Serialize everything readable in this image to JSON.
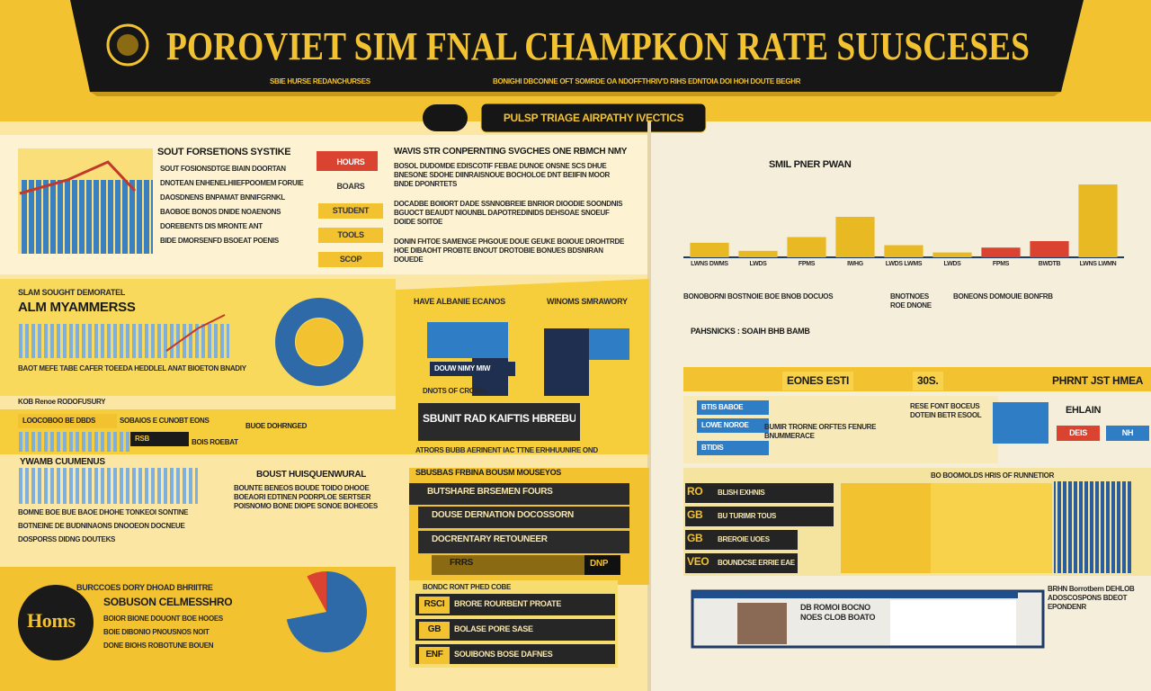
{
  "header": {
    "title": "POROVIET SIM FNAL CHAMPKON RATE SUUSCESES",
    "tag_left": "SBIE HURSE REDANCHURSES",
    "tag_right": "BONIGHI DBCONNE OFT SOMRDE OA NDOFFTHRIV'D RIHS EDNTOIA DOI HOH DOUTE BEGHR",
    "pill": "PULSP TRIAGE AIRPATHY IVECTICS"
  },
  "intro": {
    "title": "SOUT FORSETIONS SYSTIKE",
    "lines": [
      "SOUT FOSIONSDTGE BIAIN DOORTAN",
      "DNOTEAN ENHENELHIIEFPOOMEM FORUIE",
      "DAOSDNENS BNPAMAT BNNIFGRNKL",
      "BAOBOE BONOS DNIDE NOAENONS",
      "DOREBENTS DIS MRONTE ANT",
      "BIDE DMORSENFD BSOEAT POENIS"
    ]
  },
  "tags": [
    "HOURS",
    "BOARS",
    "STUDENT",
    "TOOLS",
    "SCOP"
  ],
  "column": {
    "title": "WAVIS STR CONPERNTING SVGCHES ONE RBMCH NMY",
    "paras": [
      "BOSOL DUDOMDE EDISCOTIF FEBAE DUNOE ONSNE SCS DHUE BNESONE SDOHE DIINRAISNOUE BOCHOLOE DNT BEIIFIN MOOR BNDE DPONRTETS",
      "DOCADBE BOIIORT DADE SSNNOBREIE BNRIOR DIOODIE SOONDNIS BGUOCT BEAUDT NIOUNBL DAPOTREDINIDS DEHSOAE SNOEUF DOIDE SOITOE",
      "DONIN FHTOE SAMENGE PHGOUE DOUE GEUKE BOIOUE DROHTRDE HOE DIBAOHT PROBTE BNOUT DROTOBIE BONUES BDSNIRAN DOUEDE"
    ]
  },
  "focus": {
    "kicker": "SLAM SOUGHT DEMORATEL",
    "title": "ALM MYAMMERSS",
    "note": "BAOT MEFE TABE CAFER TOEEDA HEDDLEL ANAT BIOETON BNADIY"
  },
  "market": {
    "kicker": "HAVE ALBANIE ECANOS",
    "side": "WINOMS SMRAWORY",
    "box": "DOUW NIMY MIW",
    "note": "DNOTS OF CRONAI"
  },
  "strip": {
    "label": "KOB Renoe RODOFUSURY",
    "chips": [
      "LOOCOBOO BE DBDS",
      "SOBAIOS E CUNOBT EONS",
      "BUOE DOHRNGED",
      "RSB",
      "BOIS ROEBAT"
    ]
  },
  "banner": {
    "title": "SBUNIT RAD KAIFTIS HBREBUSSOL",
    "note": "ATRORS BUBB AERINENT IAC TTNE ERHHUUNIRE OND"
  },
  "skyline": {
    "title": "YWAMB CUUMENUS",
    "lines": [
      "BOMNE BOE BUE BAOE DHOHE TONKEOI SONTINE",
      "BOTNEINE DE BUDNINAONS DNOOEON DOCNEUE",
      "DOSPORSS DIDNG DOUTEKS"
    ]
  },
  "study": {
    "title": "BOUST HUISQUENWURAL",
    "para": "BOUNTE BENEOS BOUDE TOIDO DHOOE BOEAORI EDTINEN PODRPLOE SERTSER POISNOMO BONE DIOPE SONOE BOHEOES"
  },
  "rows": {
    "title": "SBUSBAS FRBINA BOUSM MOUSEYOS",
    "items": [
      "BUTSHARE BRSEMEN FOURS",
      "DOUSE DERNATION DOCOSSORN",
      "DOCRENTARY RETOUNEER",
      "FRRS"
    ],
    "badge": "DNP"
  },
  "bottom": {
    "kicker": "BURCCOES DORY DHOAD BHRIITRE",
    "title": "SOBUSON CELMESSHRO",
    "lines": [
      "BOIOR BIONE DOUONT BOE HOOES",
      "BOIE DIBONIO PNOUSNOS NOIT",
      "DONE BIOHS ROBOTUNE BOUEN"
    ],
    "logo": "Homs"
  },
  "scores": {
    "head": "BONDC RONT PHED COBE",
    "codes": [
      "RSCI",
      "GB",
      "ENF"
    ],
    "texts": [
      "BRORE ROURBENT PROATE",
      "BOLASE PORE SASE",
      "SOUIBONS BOSE DAFNES"
    ]
  },
  "notes": {
    "cols": [
      "BONOBORNI BOSTNOIE BOE BNOB DOCUOS",
      "BNOTNOES ROE DNONE",
      "BONEONS DOMOUIE BONFRB"
    ],
    "sub": "PAHSNICKS : SOAIH BHB BAMB"
  },
  "band": [
    "EONES ESTI",
    "30S.",
    "PHRNT JST HMEA"
  ],
  "panel": {
    "chips": [
      "BTIS BABOE",
      "LOWE NOROE",
      "BTIDIS"
    ],
    "text": "BUMIR TRORNE ORFTES FENURE BNUMMERACE",
    "side": "RESE FONT BOCEUS DOTEIN BETR ESOOL",
    "label": "EHLAIN",
    "buttons": [
      "DEIS",
      "NH"
    ]
  },
  "table": {
    "head": "BO BOOMOLDS HRIS OF RUNNETIOR",
    "codes": [
      "RO",
      "GB",
      "GB",
      "VEO"
    ],
    "texts": [
      "BLISH EXHNIS",
      "BU TURIMR TOUS",
      "BREROIE UOES",
      "BOUNDCSE ERRIE EAE"
    ]
  },
  "feature": {
    "text": "DB ROMOI BOCNO NOES CLOB BOATO",
    "side": "BRHN Borrotbern DEHLOB ADOSCOSPONS BDEOT EPONDENR"
  },
  "chart_data": [
    {
      "type": "bar",
      "title": "SMIL PNER PWAN",
      "categories": [
        "LWNS DWMS",
        "LWDS",
        "FPMS",
        "IWHG",
        "LWDS LWMS",
        "LWDS",
        "FPMS",
        "BWDTB",
        "LWNS LWMN"
      ],
      "values": [
        18,
        8,
        25,
        50,
        15,
        6,
        12,
        20,
        90
      ],
      "colors": [
        "#e8b923",
        "#e8b923",
        "#e8b923",
        "#e8b923",
        "#e8b923",
        "#e8b923",
        "#d9432f",
        "#d9432f",
        "#e8b923"
      ],
      "ylim": [
        0,
        100
      ]
    },
    {
      "type": "pie",
      "values": [
        72,
        20,
        8
      ],
      "colors": [
        "#2f6aa8",
        "#f2c230",
        "#d9432f"
      ]
    }
  ]
}
